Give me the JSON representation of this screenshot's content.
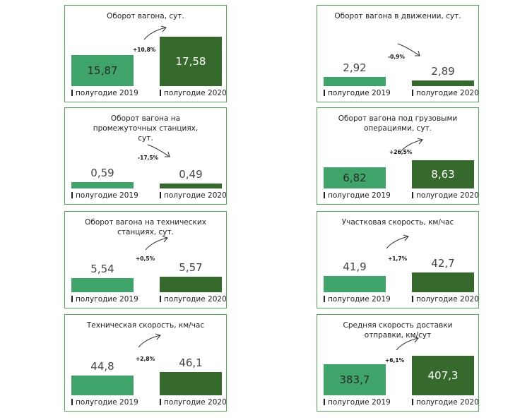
{
  "colors": {
    "border": "#4caf50",
    "bar_2019": "#3fa46a",
    "bar_2020": "#356a2c"
  },
  "chart_data": [
    {
      "type": "bar",
      "title": "Оборот вагона, сут.",
      "categories": [
        "полугодие 2019",
        "полугодие 2020"
      ],
      "values": [
        15.87,
        17.58
      ],
      "value_labels": [
        "15,87",
        "17,58"
      ],
      "change": "+10,8%"
    },
    {
      "type": "bar",
      "title": "Оборот вагона в движении, сут.",
      "categories": [
        "полугодие 2019",
        "полугодие 2020"
      ],
      "values": [
        2.92,
        2.89
      ],
      "value_labels": [
        "2,92",
        "2,89"
      ],
      "change": "-0,9%"
    },
    {
      "type": "bar",
      "title": "Оборот вагона на промежуточных станциях, сут.",
      "categories": [
        "полугодие 2019",
        "полугодие 2020"
      ],
      "values": [
        0.59,
        0.49
      ],
      "value_labels": [
        "0,59",
        "0,49"
      ],
      "change": "-17,5%"
    },
    {
      "type": "bar",
      "title": "Оборот вагона под грузовыми операциями, сут.",
      "categories": [
        "полугодие 2019",
        "полугодие 2020"
      ],
      "values": [
        6.82,
        8.63
      ],
      "value_labels": [
        "6,82",
        "8,63"
      ],
      "change": "+26,5%"
    },
    {
      "type": "bar",
      "title": "Оборот вагона на технических станциях, сут.",
      "categories": [
        "полугодие 2019",
        "полугодие 2020"
      ],
      "values": [
        5.54,
        5.57
      ],
      "value_labels": [
        "5,54",
        "5,57"
      ],
      "change": "+0,5%"
    },
    {
      "type": "bar",
      "title": "Участковая скорость, км/час",
      "categories": [
        "полугодие 2019",
        "полугодие 2020"
      ],
      "values": [
        41.9,
        42.7
      ],
      "value_labels": [
        "41,9",
        "42,7"
      ],
      "change": "+1,7%"
    },
    {
      "type": "bar",
      "title": "Техническая скорость, км/час",
      "categories": [
        "полугодие 2019",
        "полугодие 2020"
      ],
      "values": [
        44.8,
        46.1
      ],
      "value_labels": [
        "44,8",
        "46,1"
      ],
      "change": "+2,8%"
    },
    {
      "type": "bar",
      "title": "Средняя скорость доставки отправки, км/сут",
      "categories": [
        "полугодие 2019",
        "полугодие 2020"
      ],
      "values": [
        383.7,
        407.3
      ],
      "value_labels": [
        "383,7",
        "407,3"
      ],
      "change": "+6,1%"
    }
  ]
}
